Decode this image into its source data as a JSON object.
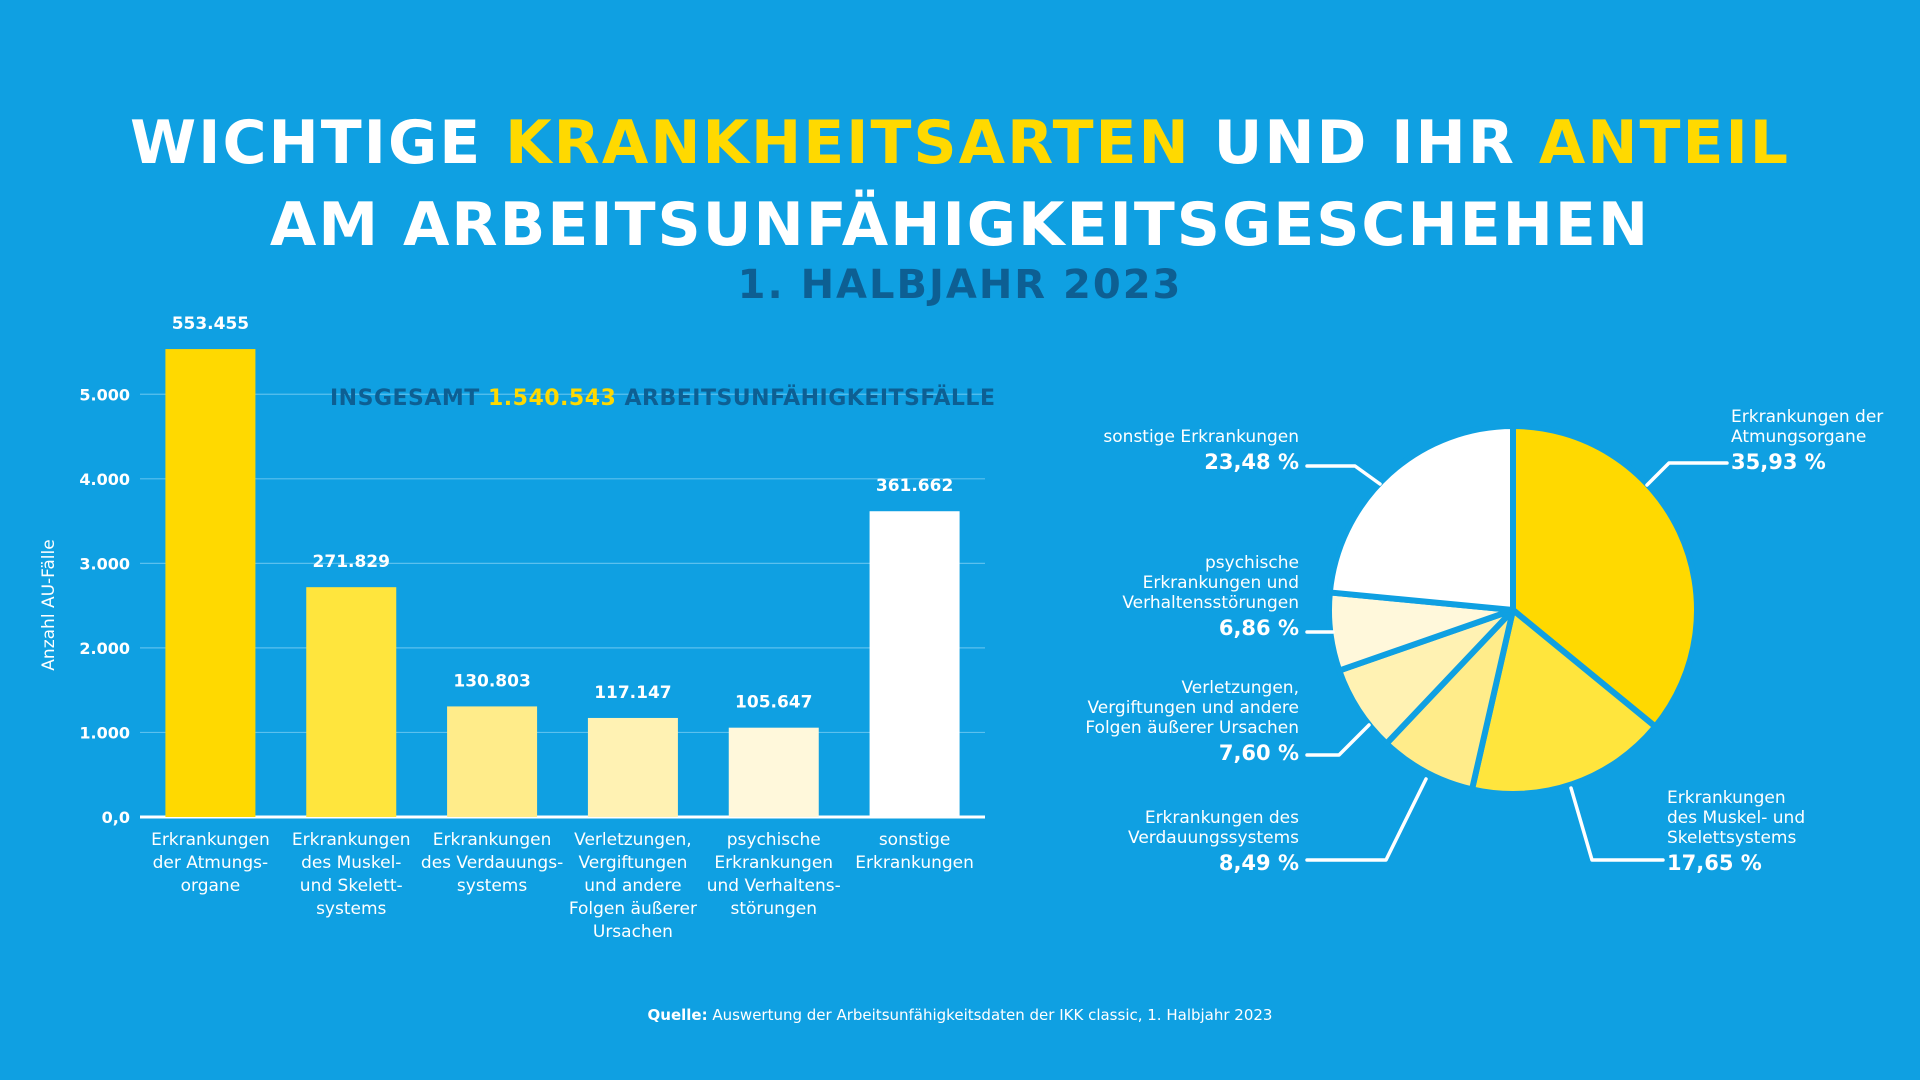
{
  "title": {
    "line1_a": "Wichtige ",
    "line1_b": "Krankheitsarten",
    "line1_c": " und ihr ",
    "line1_d": "Anteil",
    "line2": "am Arbeitsunfähigkeitsgeschehen",
    "subtitle": "1. Halbjahr 2023"
  },
  "total": {
    "prefix": "INSGESAMT ",
    "value": "1.540.543",
    "suffix": " ARBEITSUNFÄHIGKEITSFÄLLE"
  },
  "source": {
    "label": "Quelle:",
    "text": " Auswertung der Arbeitsunfähigkeitsdaten der IKK classic, 1. Halbjahr 2023"
  },
  "chart_data": [
    {
      "type": "bar",
      "ylabel": "Anzahl AU-Fälle",
      "yticks": [
        "0,0",
        "1.000",
        "2.000",
        "3.000",
        "4.000",
        "5.000"
      ],
      "ylim": [
        0,
        5500
      ],
      "grid": true,
      "categories": [
        "Erkrankungen der Atmungs-organe",
        "Erkrankungen des Muskel- und Skelett-systems",
        "Erkrankungen des Verdauungs-systems",
        "Verletzungen, Vergiftungen und andere Folgen äußerer Ursachen",
        "psychische Erkrankungen und Verhaltens-störungen",
        "sonstige Erkrankungen"
      ],
      "category_lines": [
        [
          "Erkrankungen",
          "der Atmungs-",
          "organe"
        ],
        [
          "Erkrankungen",
          "des Muskel-",
          "und Skelett-",
          "systems"
        ],
        [
          "Erkrankungen",
          "des Verdauungs-",
          "systems"
        ],
        [
          "Verletzungen,",
          "Vergiftungen",
          "und andere",
          "Folgen äußerer",
          "Ursachen"
        ],
        [
          "psychische",
          "Erkrankungen",
          "und Verhaltens-",
          "störungen"
        ],
        [
          "sonstige",
          "Erkrankungen"
        ]
      ],
      "values": [
        5534.55,
        2718.29,
        1308.03,
        1171.47,
        1056.47,
        3616.62
      ],
      "data_labels": [
        "553.455",
        "271.829",
        "130.803",
        "117.147",
        "105.647",
        "361.662"
      ],
      "colors": [
        "#ffd900",
        "#ffe53d",
        "#ffec8a",
        "#fff2b3",
        "#fff8db",
        "#ffffff"
      ]
    },
    {
      "type": "pie",
      "slices": [
        {
          "name_lines": [
            "Erkrankungen der",
            "Atmungsorgane"
          ],
          "value": 35.93,
          "label": "35,93 %",
          "color": "#ffd900"
        },
        {
          "name_lines": [
            "Erkrankungen",
            "des Muskel- und",
            "Skelettsystems"
          ],
          "value": 17.65,
          "label": "17,65 %",
          "color": "#ffe53d"
        },
        {
          "name_lines": [
            "Erkrankungen des",
            "Verdauungssystems"
          ],
          "value": 8.49,
          "label": "8,49 %",
          "color": "#ffec8a"
        },
        {
          "name_lines": [
            "Verletzungen,",
            "Vergiftungen und andere",
            "Folgen äußerer Ursachen"
          ],
          "value": 7.6,
          "label": "7,60 %",
          "color": "#fff2b3"
        },
        {
          "name_lines": [
            "psychische",
            "Erkrankungen und",
            "Verhaltensstörungen"
          ],
          "value": 6.86,
          "label": "6,86 %",
          "color": "#fff8db"
        },
        {
          "name_lines": [
            "sonstige Erkrankungen"
          ],
          "value": 23.48,
          "label": "23,48 %",
          "color": "#ffffff"
        }
      ]
    }
  ]
}
